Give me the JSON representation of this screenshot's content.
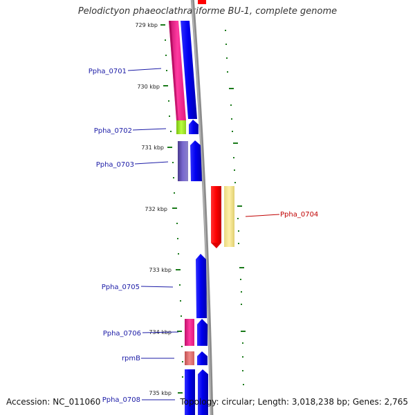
{
  "title": "Pelodictyon phaeoclathratiforme BU-1, complete genome",
  "footer": {
    "accession": "Accession: NC_011060",
    "summary": "Topology: circular; Length: 3,018,238 bp; Genes: 2,765"
  },
  "colors": {
    "backbone": "#8c8c8c",
    "tick": "#1a7a1a",
    "label_blue": "#1a1aa6",
    "label_red": "#c00000"
  },
  "ticks": [
    "729 kbp",
    "730 kbp",
    "731 kbp",
    "732 kbp",
    "733 kbp",
    "734 kbp",
    "735 kbp"
  ],
  "genes": [
    {
      "label": "Ppha_0701",
      "color": "#e6197f"
    },
    {
      "label": "Ppha_0702",
      "color": "#99e619"
    },
    {
      "label": "Ppha_0703",
      "color": "#5c4dab"
    },
    {
      "label": "Ppha_0704",
      "color": "#ff0000"
    },
    {
      "label": "Ppha_0705",
      "color": "#0000ff"
    },
    {
      "label": "Ppha_0706",
      "color": "#e6197f"
    },
    {
      "label": "rpmB",
      "color": "#e07070"
    },
    {
      "label": "Ppha_0708",
      "color": "#0000ff"
    }
  ]
}
